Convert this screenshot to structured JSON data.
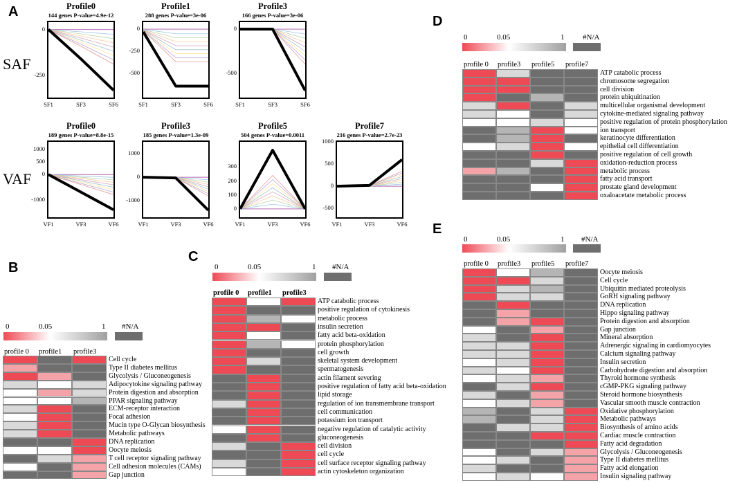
{
  "panels": {
    "A": "A",
    "B": "B",
    "C": "C",
    "D": "D",
    "E": "E"
  },
  "side_labels": {
    "saf": "SAF",
    "vaf": "VAF"
  },
  "colors": {
    "red": "#ee4a55",
    "pink": "#f4a3a8",
    "white": "#ffffff",
    "lightgray": "#d9d9d9",
    "gray": "#b5b5b5",
    "darkgray": "#6e6e6e"
  },
  "legend": {
    "l0": "0",
    "l005": "0.05",
    "l1": "1",
    "na": "#N/A"
  },
  "profiles": [
    {
      "title": "Profile0",
      "subtitle": "144 genes  P-value=4.9e-12",
      "yticks": [
        "0",
        "-250"
      ],
      "xticks": [
        "SF1",
        "SF3",
        "SF6"
      ],
      "trend": [
        0,
        -160,
        -330
      ],
      "ylim": [
        40,
        -370
      ]
    },
    {
      "title": "Profile1",
      "subtitle": "288 genes  P-value=3e-06",
      "yticks": [
        "0",
        "-250",
        "-500"
      ],
      "xticks": [
        "SF1",
        "SF3",
        "SF6"
      ],
      "trend": [
        -30,
        -650,
        -650
      ],
      "ylim": [
        80,
        -780
      ]
    },
    {
      "title": "Profile3",
      "subtitle": "166 genes  P-value=3e-06",
      "yticks": [
        "0",
        "-500"
      ],
      "xticks": [
        "SF1",
        "SF3",
        "SF6"
      ],
      "trend": [
        0,
        0,
        -700
      ],
      "ylim": [
        80,
        -780
      ]
    },
    {
      "title": "Profile0",
      "subtitle": "189 genes  P-value=8.8e-15",
      "yticks": [
        "1000",
        "500",
        "0",
        "-1000"
      ],
      "xticks": [
        "VF1",
        "VF3",
        "VF6"
      ],
      "trend": [
        0,
        -700,
        -1400
      ],
      "ylim": [
        1300,
        -1700
      ]
    },
    {
      "title": "Profile3",
      "subtitle": "185 genes  P-value=1.3e-09",
      "yticks": [
        "1000",
        "0",
        "-1000"
      ],
      "xticks": [
        "VF1",
        "VF3",
        "VF6"
      ],
      "trend": [
        0,
        -30,
        -1400
      ],
      "ylim": [
        1500,
        -1700
      ]
    },
    {
      "title": "Profile5",
      "subtitle": "504 genes  P-value=0.0011",
      "yticks": [
        "300",
        "200",
        "100",
        "0"
      ],
      "xticks": [
        "VF1",
        "VF3",
        "VF6"
      ],
      "trend": [
        0,
        420,
        0
      ],
      "ylim": [
        480,
        -60
      ]
    },
    {
      "title": "Profile7",
      "subtitle": "216 genes  P-value=2.7e-23",
      "yticks": [
        "1000",
        "500",
        "0",
        "-500"
      ],
      "xticks": [
        "VF1",
        "VF3",
        "VF6"
      ],
      "trend": [
        0,
        20,
        600
      ],
      "ylim": [
        1000,
        -700
      ]
    }
  ],
  "heatmaps": {
    "B": {
      "headers": [
        "profile 0",
        "profile1",
        "profile3"
      ],
      "terms": [
        "Cell cycle",
        "Type II diabetes mellitus",
        "Glycolysis / Gluconeogenesis",
        "Adipocytokine signaling pathway",
        "Protein digestion and absorption",
        "PPAR signaling pathway",
        "ECM-receptor interaction",
        "Focal adhesion",
        "Mucin type O-Glycan biosynthesis",
        "Metabolic pathways",
        "DNA replication",
        "Oocyte meiosis",
        "T cell receptor signaling pathway",
        "Cell adhesion molecules (CAMs)",
        "Gap junction"
      ],
      "cells": [
        [
          "red",
          "darkgray",
          "red"
        ],
        [
          "pink",
          "darkgray",
          "darkgray"
        ],
        [
          "red",
          "pink",
          "darkgray"
        ],
        [
          "lightgray",
          "white",
          "lightgray"
        ],
        [
          "white",
          "pink",
          "lightgray"
        ],
        [
          "white",
          "white",
          "gray"
        ],
        [
          "lightgray",
          "red",
          "darkgray"
        ],
        [
          "white",
          "red",
          "darkgray"
        ],
        [
          "lightgray",
          "red",
          "darkgray"
        ],
        [
          "lightgray",
          "red",
          "darkgray"
        ],
        [
          "darkgray",
          "darkgray",
          "red"
        ],
        [
          "white",
          "white",
          "red"
        ],
        [
          "darkgray",
          "lightgray",
          "pink"
        ],
        [
          "white",
          "darkgray",
          "pink"
        ],
        [
          "darkgray",
          "darkgray",
          "pink"
        ]
      ]
    },
    "C": {
      "headers": [
        "profile 0",
        "profile1",
        "profile3"
      ],
      "terms": [
        "ATP catabolic process",
        "positive regulation of cytokinesis",
        "metabolic process",
        "insulin secretion",
        "fatty acid beta-oxidation",
        "protein phosphorylation",
        "cell growth",
        "skeletal system development",
        "spermatogenesis",
        "actin filament severing",
        "positive regulation of fatty acid beta-oxidation",
        "lipid storage",
        "regulation of ion transmembrane transport",
        "cell communication",
        "potassium ion transport",
        "negative regulation of catalytic activity",
        "gluconeogenesis",
        "cell division",
        "cell cycle",
        "cell surface receptor signaling pathway",
        "actin cytoskeleton organization"
      ],
      "cells": [
        [
          "red",
          "white",
          "red"
        ],
        [
          "red",
          "darkgray",
          "darkgray"
        ],
        [
          "red",
          "gray",
          "white"
        ],
        [
          "red",
          "red",
          "darkgray"
        ],
        [
          "red",
          "white",
          "darkgray"
        ],
        [
          "red",
          "gray",
          "white"
        ],
        [
          "red",
          "darkgray",
          "darkgray"
        ],
        [
          "red",
          "lightgray",
          "darkgray"
        ],
        [
          "red",
          "darkgray",
          "darkgray"
        ],
        [
          "darkgray",
          "red",
          "darkgray"
        ],
        [
          "darkgray",
          "red",
          "darkgray"
        ],
        [
          "darkgray",
          "red",
          "darkgray"
        ],
        [
          "lightgray",
          "red",
          "darkgray"
        ],
        [
          "darkgray",
          "red",
          "darkgray"
        ],
        [
          "darkgray",
          "red",
          "darkgray"
        ],
        [
          "white",
          "red",
          "darkgray"
        ],
        [
          "darkgray",
          "red",
          "darkgray"
        ],
        [
          "lightgray",
          "darkgray",
          "red"
        ],
        [
          "darkgray",
          "darkgray",
          "red"
        ],
        [
          "lightgray",
          "darkgray",
          "red"
        ],
        [
          "white",
          "darkgray",
          "red"
        ]
      ]
    },
    "D": {
      "headers": [
        "profile 0",
        "profile3",
        "profile5",
        "profile7"
      ],
      "terms": [
        "ATP catabolic process",
        "chromosome segregation",
        "cell division",
        "protein ubiquitination",
        "multicellular organismal development",
        "cytokine-mediated signaling pathway",
        "positive regulation of protein phosphorylation",
        "ion transport",
        "keratinocyte differentiation",
        "epithelial cell differentiation",
        "positive regulation of cell growth",
        "oxidation-reduction process",
        "metabolic process",
        "fatty acid transport",
        "prostate gland development",
        "oxaloacetate metabolic process"
      ],
      "cells": [
        [
          "red",
          "lightgray",
          "darkgray",
          "darkgray"
        ],
        [
          "red",
          "red",
          "darkgray",
          "darkgray"
        ],
        [
          "red",
          "red",
          "darkgray",
          "darkgray"
        ],
        [
          "red",
          "darkgray",
          "gray",
          "darkgray"
        ],
        [
          "lightgray",
          "red",
          "darkgray",
          "lightgray"
        ],
        [
          "lightgray",
          "white",
          "darkgray",
          "lightgray"
        ],
        [
          "white",
          "white",
          "lightgray",
          "white"
        ],
        [
          "darkgray",
          "gray",
          "red",
          "white"
        ],
        [
          "darkgray",
          "gray",
          "red",
          "darkgray"
        ],
        [
          "white",
          "lightgray",
          "red",
          "white"
        ],
        [
          "darkgray",
          "darkgray",
          "red",
          "darkgray"
        ],
        [
          "darkgray",
          "darkgray",
          "lightgray",
          "red"
        ],
        [
          "pink",
          "gray",
          "darkgray",
          "red"
        ],
        [
          "darkgray",
          "darkgray",
          "darkgray",
          "red"
        ],
        [
          "darkgray",
          "darkgray",
          "white",
          "red"
        ],
        [
          "darkgray",
          "darkgray",
          "darkgray",
          "red"
        ]
      ]
    },
    "E": {
      "headers": [
        "profile 0",
        "profile3",
        "profile5",
        "profile7"
      ],
      "terms": [
        "Oocyte meiosis",
        "Cell cycle",
        "Ubiquitin mediated proteolysis",
        "GnRH signaling pathway",
        "DNA replication",
        "Hippo signaling pathway",
        "Protein digestion and absorption",
        "Gap junction",
        "Mineral absorption",
        "Adrenergic signaling in cardiomyocytes",
        "Calcium signaling pathway",
        "Insulin secretion",
        "Carbohydrate digestion and absorption",
        "Thyroid hormone synthesis",
        "cGMP-PKG signaling pathway",
        "Steroid hormone biosynthesis",
        "Vascular smooth muscle contraction",
        "Oxidative phosphorylation",
        "Metabolic pathways",
        "Biosynthesis of amino acids",
        "Cardiac muscle contraction",
        "Fatty acid degradation",
        "Glycolysis / Gluconeogenesis",
        "Type II diabetes mellitus",
        "Fatty acid elongation",
        "Insulin signaling pathway"
      ],
      "cells": [
        [
          "red",
          "white",
          "gray",
          "darkgray"
        ],
        [
          "red",
          "red",
          "lightgray",
          "darkgray"
        ],
        [
          "red",
          "lightgray",
          "gray",
          "darkgray"
        ],
        [
          "red",
          "lightgray",
          "lightgray",
          "darkgray"
        ],
        [
          "darkgray",
          "red",
          "darkgray",
          "darkgray"
        ],
        [
          "darkgray",
          "pink",
          "darkgray",
          "darkgray"
        ],
        [
          "darkgray",
          "pink",
          "red",
          "darkgray"
        ],
        [
          "white",
          "darkgray",
          "pink",
          "darkgray"
        ],
        [
          "lightgray",
          "darkgray",
          "red",
          "darkgray"
        ],
        [
          "lightgray",
          "lightgray",
          "red",
          "darkgray"
        ],
        [
          "lightgray",
          "lightgray",
          "red",
          "darkgray"
        ],
        [
          "white",
          "lightgray",
          "red",
          "darkgray"
        ],
        [
          "lightgray",
          "white",
          "red",
          "darkgray"
        ],
        [
          "white",
          "lightgray",
          "pink",
          "darkgray"
        ],
        [
          "darkgray",
          "lightgray",
          "red",
          "darkgray"
        ],
        [
          "lightgray",
          "darkgray",
          "pink",
          "darkgray"
        ],
        [
          "white",
          "lightgray",
          "pink",
          "darkgray"
        ],
        [
          "gray",
          "darkgray",
          "lightgray",
          "red"
        ],
        [
          "gray",
          "darkgray",
          "lightgray",
          "red"
        ],
        [
          "darkgray",
          "lightgray",
          "lightgray",
          "red"
        ],
        [
          "darkgray",
          "darkgray",
          "red",
          "red"
        ],
        [
          "darkgray",
          "darkgray",
          "darkgray",
          "red"
        ],
        [
          "white",
          "darkgray",
          "lightgray",
          "pink"
        ],
        [
          "white",
          "lightgray",
          "darkgray",
          "pink"
        ],
        [
          "lightgray",
          "darkgray",
          "darkgray",
          "pink"
        ],
        [
          "white",
          "lightgray",
          "white",
          "pink"
        ]
      ]
    }
  }
}
